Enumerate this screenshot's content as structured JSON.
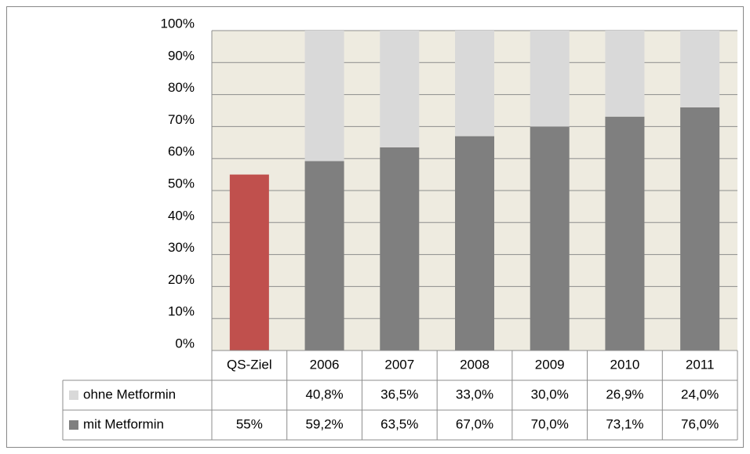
{
  "chart_data": {
    "type": "stacked_bar",
    "categories": [
      "QS-Ziel",
      "2006",
      "2007",
      "2008",
      "2009",
      "2010",
      "2011"
    ],
    "series": [
      {
        "name": "mit Metformin",
        "color": "#7f7f7f",
        "colors": [
          "#c0504d",
          "#7f7f7f",
          "#7f7f7f",
          "#7f7f7f",
          "#7f7f7f",
          "#7f7f7f",
          "#7f7f7f"
        ],
        "values": [
          55,
          59.2,
          63.5,
          67.0,
          70.0,
          73.1,
          76.0
        ],
        "value_labels": [
          "55%",
          "59,2%",
          "63,5%",
          "67,0%",
          "70,0%",
          "73,1%",
          "76,0%"
        ]
      },
      {
        "name": "ohne Metformin",
        "color": "#d9d9d9",
        "values": [
          null,
          40.8,
          36.5,
          33.0,
          30.0,
          26.9,
          24.0
        ],
        "value_labels": [
          null,
          "40,8%",
          "36,5%",
          "33,0%",
          "30,0%",
          "26,9%",
          "24,0%"
        ]
      }
    ],
    "ylim": [
      0,
      100
    ],
    "yticks": [
      {
        "value": 0,
        "label": "0%"
      },
      {
        "value": 10,
        "label": "10%"
      },
      {
        "value": 20,
        "label": "20%"
      },
      {
        "value": 30,
        "label": "30%"
      },
      {
        "value": 40,
        "label": "40%"
      },
      {
        "value": 50,
        "label": "50%"
      },
      {
        "value": 60,
        "label": "60%"
      },
      {
        "value": 70,
        "label": "70%"
      },
      {
        "value": 80,
        "label": "80%"
      },
      {
        "value": 90,
        "label": "90%"
      },
      {
        "value": 100,
        "label": "100%"
      }
    ],
    "grid": true,
    "legend": "table"
  }
}
